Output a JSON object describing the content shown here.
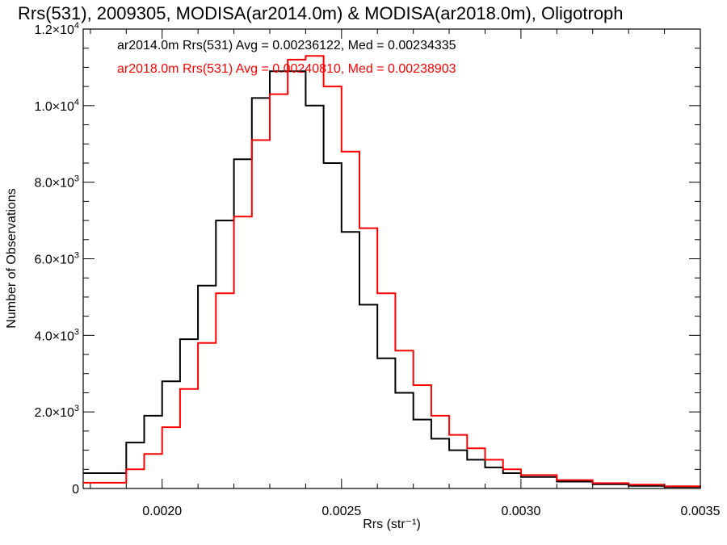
{
  "colors": {
    "series_a": "#000000",
    "series_b": "#ff0000",
    "axes": "#000000"
  },
  "chart_data": {
    "type": "line",
    "step": true,
    "title": "Rrs(531), 2009305, MODISA(ar2014.0m) & MODISA(ar2018.0m), Oligotroph",
    "xlabel": "Rrs (str⁻¹)",
    "ylabel": "Number of Observations",
    "xlim": [
      0.00178,
      0.0035
    ],
    "ylim": [
      0,
      12000
    ],
    "grid": false,
    "x_ticks": [
      {
        "value": 0.002,
        "label": "0.0020"
      },
      {
        "value": 0.0025,
        "label": "0.0025"
      },
      {
        "value": 0.003,
        "label": "0.0030"
      },
      {
        "value": 0.0035,
        "label": "0.0035"
      }
    ],
    "y_ticks": [
      {
        "value": 0,
        "mant": "0",
        "exp": ""
      },
      {
        "value": 2000,
        "mant": "2.0×10",
        "exp": "3"
      },
      {
        "value": 4000,
        "mant": "4.0×10",
        "exp": "3"
      },
      {
        "value": 6000,
        "mant": "6.0×10",
        "exp": "3"
      },
      {
        "value": 8000,
        "mant": "8.0×10",
        "exp": "3"
      },
      {
        "value": 10000,
        "mant": "1.0×10",
        "exp": "4"
      },
      {
        "value": 12000,
        "mant": "1.2×10",
        "exp": "4"
      }
    ],
    "legend_placement": "top-left",
    "series": [
      {
        "name": "ar2014.0m",
        "legend": "ar2014.0m Rrs(531) Avg = 0.00236122, Med = 0.00234335",
        "color": "#000000",
        "x": [
          0.00178,
          0.0019,
          0.00195,
          0.002,
          0.00205,
          0.0021,
          0.00215,
          0.0022,
          0.00225,
          0.0023,
          0.00235,
          0.0024,
          0.00245,
          0.0025,
          0.00255,
          0.0026,
          0.00265,
          0.0027,
          0.00275,
          0.0028,
          0.00285,
          0.0029,
          0.00295,
          0.003,
          0.0031,
          0.0032,
          0.0033,
          0.0034,
          0.0035
        ],
        "y": [
          400,
          1200,
          1900,
          2800,
          3900,
          5300,
          7000,
          8600,
          10200,
          10900,
          10900,
          10000,
          8500,
          6700,
          4800,
          3400,
          2500,
          1800,
          1300,
          1000,
          750,
          550,
          400,
          300,
          180,
          110,
          70,
          40,
          20
        ]
      },
      {
        "name": "ar2018.0m",
        "legend": "ar2018.0m Rrs(531) Avg = 0.00240810, Med = 0.00238903",
        "color": "#ff0000",
        "x": [
          0.00178,
          0.0019,
          0.00195,
          0.002,
          0.00205,
          0.0021,
          0.00215,
          0.0022,
          0.00225,
          0.0023,
          0.00235,
          0.0024,
          0.00245,
          0.0025,
          0.00255,
          0.0026,
          0.00265,
          0.0027,
          0.00275,
          0.0028,
          0.00285,
          0.0029,
          0.00295,
          0.003,
          0.0031,
          0.0032,
          0.0033,
          0.0034,
          0.0035
        ],
        "y": [
          150,
          500,
          900,
          1600,
          2600,
          3800,
          5100,
          7100,
          9100,
          10300,
          11200,
          11300,
          10500,
          8800,
          6800,
          5100,
          3600,
          2700,
          1900,
          1400,
          1050,
          750,
          500,
          350,
          220,
          140,
          100,
          60,
          30
        ]
      }
    ]
  }
}
